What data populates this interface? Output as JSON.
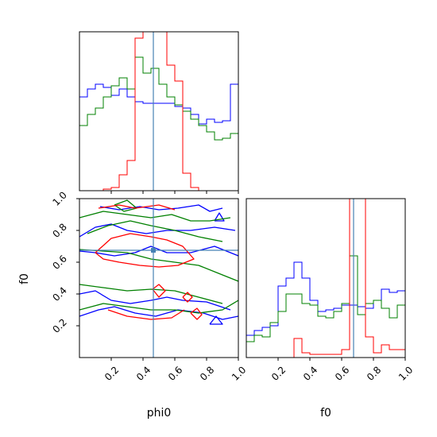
{
  "chart_data": {
    "type": "corner",
    "parameters": [
      "phi0",
      "f0"
    ],
    "axis_labels": {
      "x_left": "phi0",
      "x_right": "f0",
      "y_left": "f0"
    },
    "truth": {
      "phi0": 0.465,
      "f0": 0.675
    },
    "axes": {
      "phi0": {
        "lim": [
          0.0,
          1.0
        ],
        "ticks": [
          0.2,
          0.4,
          0.6,
          0.8,
          1.0
        ],
        "tick_labels": [
          "0.2",
          "0.4",
          "0.6",
          "0.8",
          "1.0"
        ]
      },
      "f0": {
        "lim": [
          0.0,
          1.0
        ],
        "ticks": [
          0.2,
          0.4,
          0.6,
          0.8,
          1.0
        ],
        "tick_labels": [
          "0.2",
          "0.4",
          "0.6",
          "0.8",
          "1.0"
        ]
      }
    },
    "colors": {
      "blue": "#0000ff",
      "green": "#008000",
      "red": "#ff0000",
      "truth": "#4682b4"
    },
    "hist_phi0": {
      "bins": [
        0.0,
        0.05,
        0.1,
        0.15,
        0.2,
        0.25,
        0.3,
        0.35,
        0.4,
        0.45,
        0.5,
        0.55,
        0.6,
        0.65,
        0.7,
        0.75,
        0.8,
        0.85,
        0.9,
        0.95,
        1.0
      ],
      "ymax": 1.0,
      "series": [
        {
          "color": "blue",
          "values": [
            0.59,
            0.64,
            0.67,
            0.65,
            0.6,
            0.64,
            0.59,
            0.56,
            0.55,
            0.55,
            0.55,
            0.55,
            0.53,
            0.52,
            0.48,
            0.42,
            0.45,
            0.43,
            0.44,
            0.67
          ]
        },
        {
          "color": "green",
          "values": [
            0.41,
            0.48,
            0.52,
            0.59,
            0.66,
            0.71,
            0.64,
            0.84,
            0.74,
            0.77,
            0.67,
            0.59,
            0.54,
            0.5,
            0.45,
            0.41,
            0.37,
            0.32,
            0.33,
            0.36
          ]
        },
        {
          "color": "red",
          "values": [
            0.0,
            0.0,
            0.0,
            0.01,
            0.02,
            0.1,
            0.19,
            0.96,
            1.05,
            1.1,
            1.08,
            0.79,
            0.69,
            0.11,
            0.02,
            0.0,
            0.0,
            0.0,
            0.0,
            0.0
          ]
        }
      ]
    },
    "hist_f0": {
      "bins": [
        0.0,
        0.05,
        0.1,
        0.15,
        0.2,
        0.25,
        0.3,
        0.35,
        0.4,
        0.45,
        0.5,
        0.55,
        0.6,
        0.65,
        0.7,
        0.75,
        0.8,
        0.85,
        0.9,
        0.95,
        1.0
      ],
      "ymax": 1.0,
      "series": [
        {
          "color": "blue",
          "values": [
            0.14,
            0.17,
            0.19,
            0.2,
            0.45,
            0.5,
            0.6,
            0.5,
            0.36,
            0.29,
            0.3,
            0.31,
            0.33,
            0.33,
            0.32,
            0.31,
            0.36,
            0.43,
            0.41,
            0.42
          ]
        },
        {
          "color": "green",
          "values": [
            0.1,
            0.14,
            0.13,
            0.22,
            0.29,
            0.4,
            0.4,
            0.34,
            0.33,
            0.26,
            0.25,
            0.29,
            0.34,
            0.64,
            0.27,
            0.34,
            0.36,
            0.31,
            0.25,
            0.33
          ]
        },
        {
          "color": "red",
          "values": [
            0.0,
            0.0,
            0.0,
            0.0,
            0.0,
            0.0,
            0.12,
            0.03,
            0.02,
            0.02,
            0.02,
            0.02,
            0.05,
            1.2,
            1.2,
            0.13,
            0.03,
            0.08,
            0.05,
            0.05
          ]
        }
      ]
    },
    "contours": [
      {
        "color": "blue",
        "lines": [
          [
            [
              0.13,
              0.95
            ],
            [
              0.25,
              0.93
            ],
            [
              0.38,
              0.95
            ],
            [
              0.5,
              0.93
            ],
            [
              0.62,
              0.94
            ],
            [
              0.75,
              0.96
            ],
            [
              0.82,
              0.92
            ],
            [
              0.9,
              0.94
            ]
          ],
          [
            [
              0.0,
              0.76
            ],
            [
              0.1,
              0.82
            ],
            [
              0.2,
              0.84
            ],
            [
              0.3,
              0.8
            ],
            [
              0.42,
              0.78
            ],
            [
              0.55,
              0.8
            ],
            [
              0.7,
              0.8
            ],
            [
              0.85,
              0.82
            ],
            [
              0.98,
              0.8
            ]
          ],
          [
            [
              0.0,
              0.67
            ],
            [
              0.1,
              0.66
            ],
            [
              0.22,
              0.64
            ],
            [
              0.35,
              0.66
            ],
            [
              0.45,
              0.7
            ],
            [
              0.55,
              0.66
            ],
            [
              0.7,
              0.66
            ],
            [
              0.85,
              0.7
            ],
            [
              1.0,
              0.64
            ]
          ],
          [
            [
              0.0,
              0.4
            ],
            [
              0.1,
              0.42
            ],
            [
              0.2,
              0.36
            ],
            [
              0.32,
              0.34
            ],
            [
              0.45,
              0.36
            ],
            [
              0.55,
              0.38
            ],
            [
              0.65,
              0.36
            ],
            [
              0.8,
              0.35
            ],
            [
              0.95,
              0.3
            ]
          ],
          [
            [
              0.0,
              0.26
            ],
            [
              0.12,
              0.3
            ],
            [
              0.22,
              0.32
            ],
            [
              0.35,
              0.28
            ],
            [
              0.48,
              0.26
            ],
            [
              0.62,
              0.3
            ],
            [
              0.78,
              0.28
            ],
            [
              0.9,
              0.24
            ],
            [
              1.0,
              0.26
            ]
          ],
          [
            [
              0.82,
              0.21
            ],
            [
              0.86,
              0.26
            ],
            [
              0.9,
              0.21
            ],
            [
              0.82,
              0.21
            ]
          ],
          [
            [
              0.85,
              0.86
            ],
            [
              0.88,
              0.91
            ],
            [
              0.91,
              0.86
            ],
            [
              0.85,
              0.86
            ]
          ]
        ]
      },
      {
        "color": "green",
        "lines": [
          [
            [
              0.0,
              0.88
            ],
            [
              0.15,
              0.92
            ],
            [
              0.3,
              0.9
            ],
            [
              0.45,
              0.88
            ],
            [
              0.58,
              0.9
            ],
            [
              0.7,
              0.86
            ],
            [
              0.82,
              0.86
            ],
            [
              0.95,
              0.88
            ]
          ],
          [
            [
              0.05,
              0.78
            ],
            [
              0.18,
              0.83
            ],
            [
              0.32,
              0.86
            ],
            [
              0.45,
              0.83
            ],
            [
              0.6,
              0.8
            ],
            [
              0.75,
              0.76
            ],
            [
              0.9,
              0.73
            ]
          ],
          [
            [
              0.0,
              0.68
            ],
            [
              0.15,
              0.67
            ],
            [
              0.3,
              0.66
            ],
            [
              0.45,
              0.62
            ],
            [
              0.6,
              0.6
            ],
            [
              0.75,
              0.58
            ],
            [
              0.9,
              0.52
            ],
            [
              1.0,
              0.48
            ]
          ],
          [
            [
              0.0,
              0.46
            ],
            [
              0.15,
              0.44
            ],
            [
              0.3,
              0.42
            ],
            [
              0.45,
              0.43
            ],
            [
              0.6,
              0.42
            ],
            [
              0.75,
              0.38
            ],
            [
              0.9,
              0.34
            ]
          ],
          [
            [
              0.0,
              0.3
            ],
            [
              0.15,
              0.34
            ],
            [
              0.3,
              0.32
            ],
            [
              0.45,
              0.3
            ],
            [
              0.6,
              0.3
            ],
            [
              0.75,
              0.28
            ],
            [
              0.9,
              0.3
            ],
            [
              1.0,
              0.36
            ]
          ],
          [
            [
              0.22,
              0.96
            ],
            [
              0.3,
              0.99
            ],
            [
              0.36,
              0.94
            ],
            [
              0.28,
              0.92
            ],
            [
              0.22,
              0.96
            ]
          ]
        ]
      },
      {
        "color": "red",
        "lines": [
          [
            [
              0.12,
              0.94
            ],
            [
              0.25,
              0.96
            ],
            [
              0.35,
              0.94
            ],
            [
              0.5,
              0.96
            ],
            [
              0.6,
              0.93
            ]
          ],
          [
            [
              0.1,
              0.66
            ],
            [
              0.2,
              0.75
            ],
            [
              0.32,
              0.78
            ],
            [
              0.45,
              0.76
            ],
            [
              0.55,
              0.74
            ],
            [
              0.65,
              0.7
            ],
            [
              0.72,
              0.62
            ],
            [
              0.62,
              0.58
            ],
            [
              0.5,
              0.57
            ],
            [
              0.38,
              0.58
            ],
            [
              0.25,
              0.6
            ],
            [
              0.15,
              0.62
            ],
            [
              0.1,
              0.66
            ]
          ],
          [
            [
              0.18,
              0.3
            ],
            [
              0.3,
              0.26
            ],
            [
              0.45,
              0.24
            ],
            [
              0.58,
              0.25
            ],
            [
              0.66,
              0.3
            ]
          ],
          [
            [
              0.46,
              0.43
            ],
            [
              0.5,
              0.46
            ],
            [
              0.54,
              0.42
            ],
            [
              0.5,
              0.38
            ],
            [
              0.46,
              0.43
            ]
          ],
          [
            [
              0.65,
              0.38
            ],
            [
              0.68,
              0.41
            ],
            [
              0.71,
              0.38
            ],
            [
              0.68,
              0.35
            ],
            [
              0.65,
              0.38
            ]
          ],
          [
            [
              0.7,
              0.28
            ],
            [
              0.74,
              0.31
            ],
            [
              0.77,
              0.27
            ],
            [
              0.74,
              0.24
            ],
            [
              0.7,
              0.28
            ]
          ]
        ]
      }
    ]
  }
}
